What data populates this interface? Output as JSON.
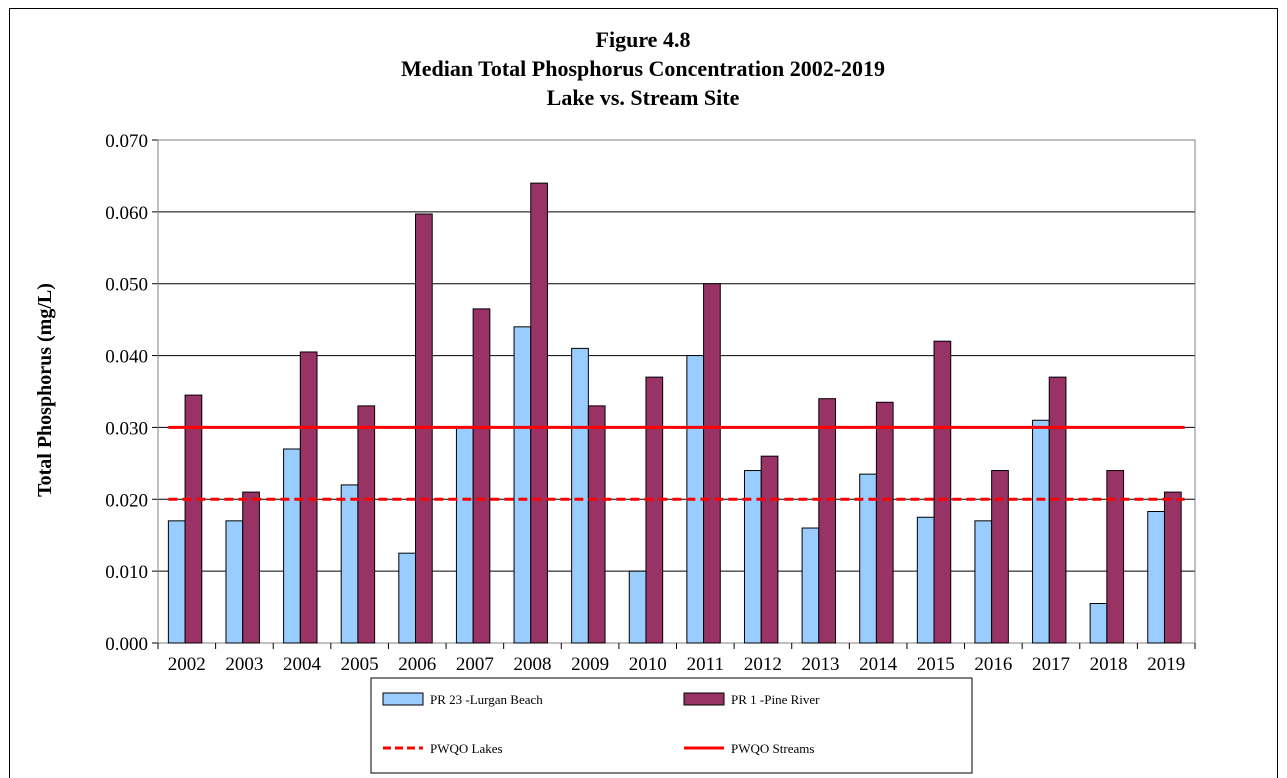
{
  "chart_data": {
    "type": "bar",
    "title": [
      "Figure 4.8",
      "Median Total Phosphorus Concentration 2002-2019",
      "Lake vs. Stream Site"
    ],
    "xlabel": "",
    "ylabel": "Total Phosphorus (mg/L)",
    "ylim": [
      0,
      0.07
    ],
    "yticks": [
      "0.000",
      "0.010",
      "0.020",
      "0.030",
      "0.040",
      "0.050",
      "0.060",
      "0.070"
    ],
    "grid": "horizontal",
    "legend_position": "bottom",
    "categories": [
      "2002",
      "2003",
      "2004",
      "2005",
      "2006",
      "2007",
      "2008",
      "2009",
      "2010",
      "2011",
      "2012",
      "2013",
      "2014",
      "2015",
      "2016",
      "2017",
      "2018",
      "2019"
    ],
    "series": [
      {
        "name": "PR 23 -Lurgan Beach",
        "color": "#99ccff",
        "values": [
          0.017,
          0.017,
          0.027,
          0.022,
          0.0125,
          0.03,
          0.044,
          0.041,
          0.01,
          0.04,
          0.024,
          0.016,
          0.0235,
          0.0175,
          0.017,
          0.031,
          0.0055,
          0.0183
        ]
      },
      {
        "name": "PR 1 -Pine River",
        "color": "#993366",
        "values": [
          0.0345,
          0.021,
          0.0405,
          0.033,
          0.0597,
          0.0465,
          0.064,
          0.033,
          0.037,
          0.05,
          0.026,
          0.034,
          0.0335,
          0.042,
          0.024,
          0.037,
          0.024,
          0.021
        ]
      }
    ],
    "reference_lines": [
      {
        "name": "PWQO Lakes",
        "value": 0.02,
        "color": "#ff0000",
        "style": "dashed"
      },
      {
        "name": "PWQO Streams",
        "value": 0.03,
        "color": "#ff0000",
        "style": "solid"
      }
    ]
  }
}
